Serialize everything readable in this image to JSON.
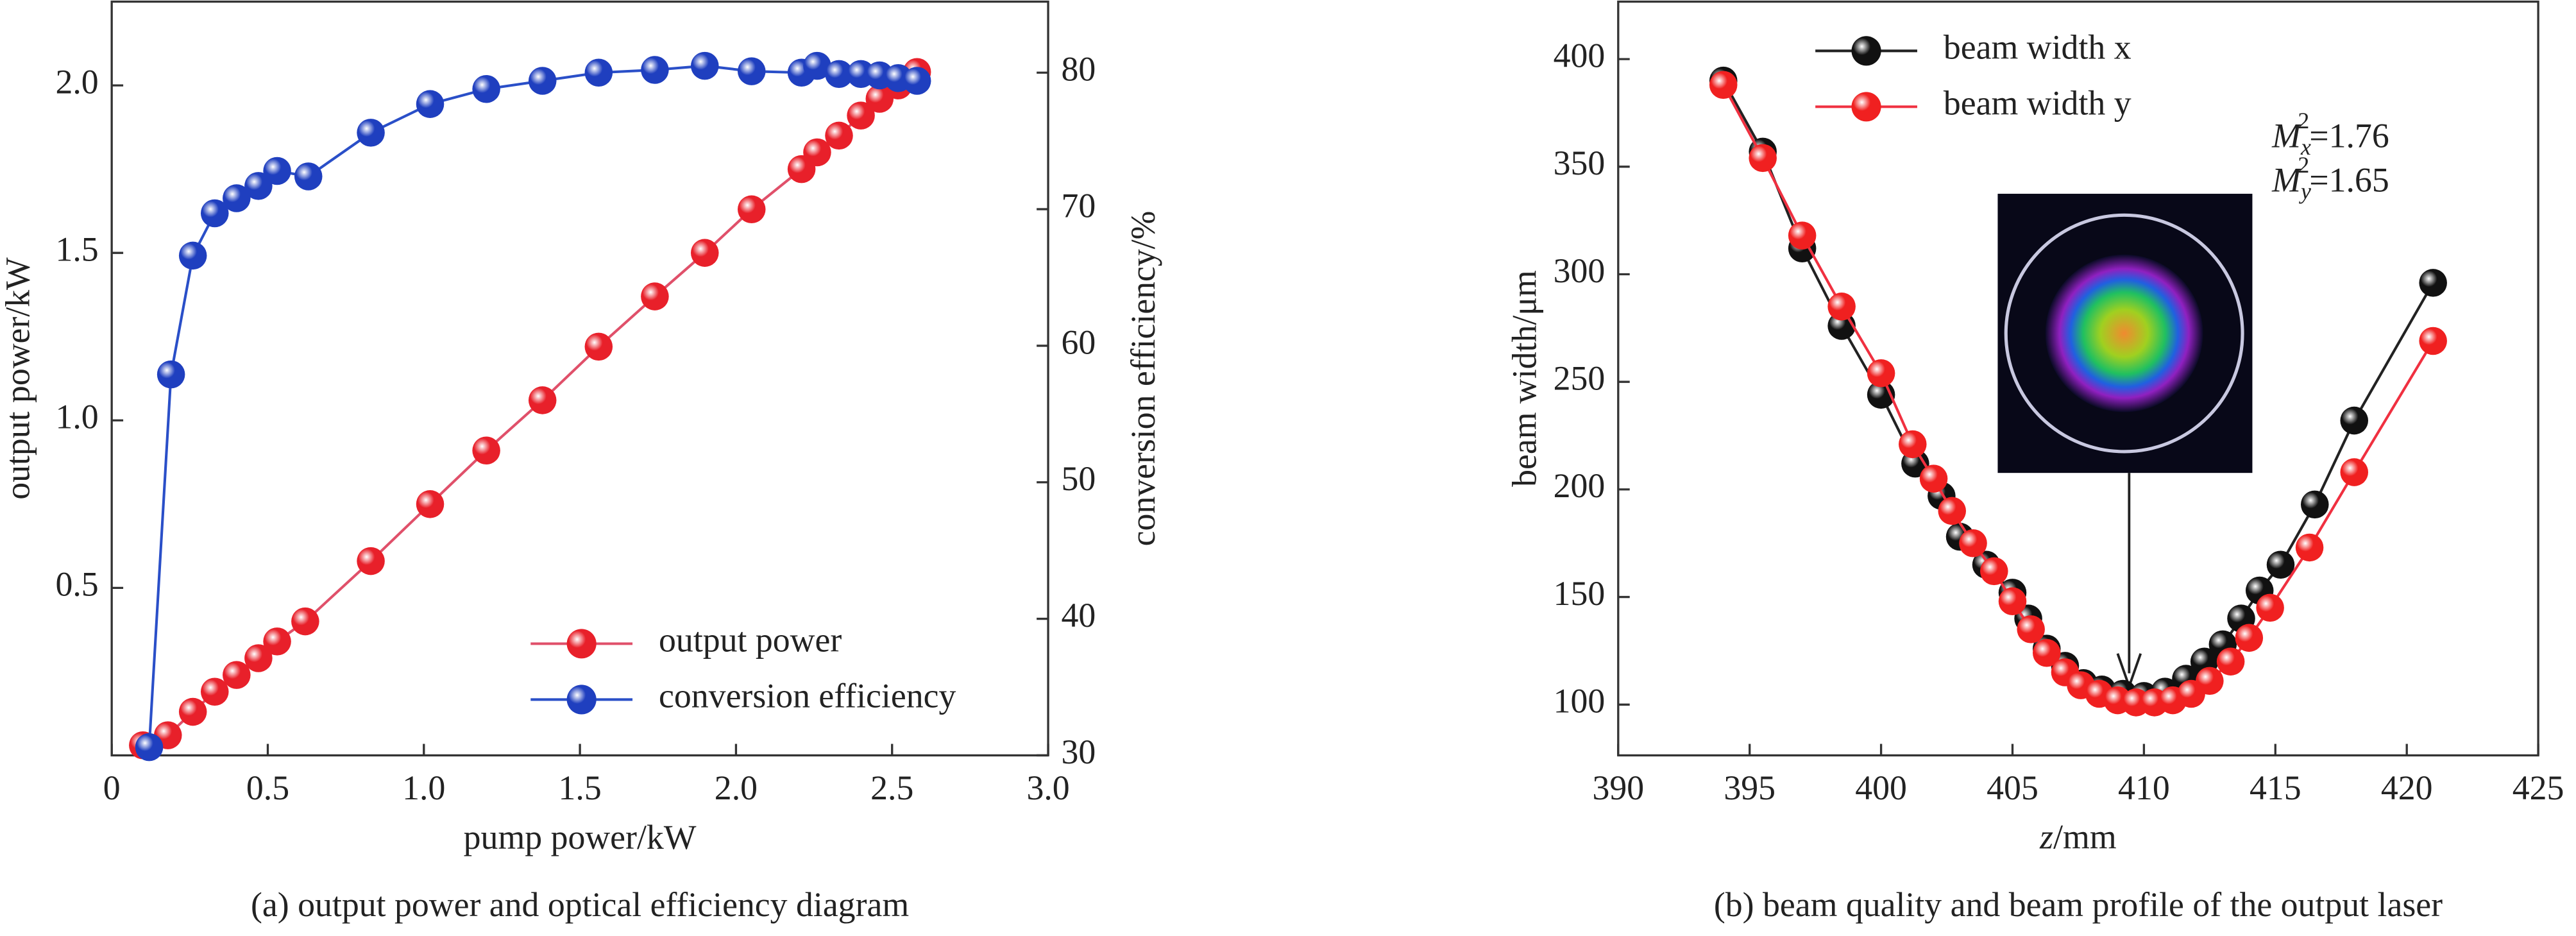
{
  "chart_data": [
    {
      "type": "line",
      "caption": "(a) output power and optical efficiency diagram",
      "xlabel": "pump power/kW",
      "ylabel": "output power/kW",
      "y2label": "conversion efficiency/%",
      "xlim": [
        0,
        3.0
      ],
      "xticks": [
        0,
        0.5,
        {
          "value": 1.0,
          "label": "1.0"
        },
        1.5,
        {
          "value": 2.0,
          "label": "2.0"
        },
        2.5,
        {
          "value": 3.0,
          "label": "3.0"
        }
      ],
      "ylim": [
        0,
        2.25
      ],
      "yticks": [
        0.5,
        {
          "value": 1.0,
          "label": "1.0"
        },
        1.5,
        {
          "value": 2.0,
          "label": "2.0"
        }
      ],
      "y2lim": [
        30,
        85.2
      ],
      "y2ticks": [
        30,
        40,
        50,
        60,
        70,
        80
      ],
      "legend": "lower right",
      "series": [
        {
          "name": "output power",
          "color": "#e8202a",
          "line_color": "#e0506a",
          "x": [
            0.1,
            0.18,
            0.26,
            0.33,
            0.4,
            0.47,
            0.53,
            0.62,
            0.83,
            1.02,
            1.2,
            1.38,
            1.56,
            1.74,
            1.9,
            2.05,
            2.21,
            2.26,
            2.33,
            2.4,
            2.46,
            2.52,
            2.58
          ],
          "values": [
            0.03,
            0.06,
            0.13,
            0.19,
            0.24,
            0.29,
            0.34,
            0.4,
            0.58,
            0.75,
            0.91,
            1.06,
            1.22,
            1.37,
            1.5,
            1.63,
            1.75,
            1.8,
            1.85,
            1.91,
            1.96,
            2.0,
            2.04
          ]
        },
        {
          "name": "conversion efficiency",
          "color": "#1f3fbf",
          "line_color": "#2a4fc8",
          "axis": "y2",
          "x": [
            0.12,
            0.19,
            0.26,
            0.33,
            0.4,
            0.47,
            0.53,
            0.63,
            0.83,
            1.02,
            1.2,
            1.38,
            1.56,
            1.74,
            1.9,
            2.05,
            2.21,
            2.26,
            2.33,
            2.4,
            2.46,
            2.52,
            2.58
          ],
          "values": [
            30.6,
            57.9,
            66.6,
            69.7,
            70.8,
            71.7,
            72.8,
            72.4,
            75.6,
            77.7,
            78.8,
            79.4,
            80.0,
            80.2,
            80.5,
            80.1,
            80.0,
            80.5,
            79.9,
            79.9,
            79.8,
            79.6,
            79.4
          ]
        }
      ]
    },
    {
      "type": "line",
      "caption": "(b) beam quality and beam profile of the output laser",
      "xlabel": [
        "z",
        "/mm"
      ],
      "ylabel": "beam width/μm",
      "xlim": [
        390,
        425
      ],
      "xticks": [
        390,
        395,
        400,
        405,
        410,
        415,
        420,
        425
      ],
      "ylim": [
        76.4,
        426.7
      ],
      "yticks": [
        100,
        150,
        200,
        250,
        300,
        350,
        400
      ],
      "legend": "upper left",
      "annotations": [
        {
          "base": "M",
          "sub": "x",
          "sup": "2",
          "text": "=1.76"
        },
        {
          "base": "M",
          "sub": "y",
          "sup": "2",
          "text": "=1.65"
        }
      ],
      "series": [
        {
          "name": "beam width x",
          "color": "#111111",
          "line_color": "#222222",
          "x": [
            394,
            395.5,
            397,
            398.5,
            400,
            401.3,
            402.3,
            403,
            404,
            405,
            405.6,
            406.3,
            407,
            407.7,
            408.4,
            409.2,
            410,
            410.8,
            411.6,
            412.3,
            413,
            413.7,
            414.4,
            415.2,
            416.5,
            418,
            421
          ],
          "values": [
            390,
            357,
            312,
            276,
            244,
            212,
            197,
            178,
            165,
            152,
            140,
            126,
            118,
            110,
            107,
            105,
            104,
            106,
            112,
            120,
            128,
            140,
            153,
            165,
            193,
            232,
            296
          ]
        },
        {
          "name": "beam width y",
          "color": "#f02020",
          "line_color": "#f03040",
          "x": [
            394,
            395.5,
            397,
            398.5,
            400,
            401.2,
            402,
            402.7,
            403.5,
            404.3,
            405,
            405.7,
            406.3,
            407,
            407.6,
            408.3,
            409,
            409.7,
            410.4,
            411.1,
            411.8,
            412.5,
            413.3,
            414,
            414.8,
            416.3,
            418,
            421
          ],
          "values": [
            388,
            354,
            318,
            285,
            254,
            221,
            205,
            190,
            175,
            162,
            148,
            135,
            124,
            115,
            109,
            105,
            102,
            101,
            101,
            102,
            105,
            111,
            120,
            131,
            145,
            173,
            208,
            269
          ]
        }
      ]
    }
  ]
}
